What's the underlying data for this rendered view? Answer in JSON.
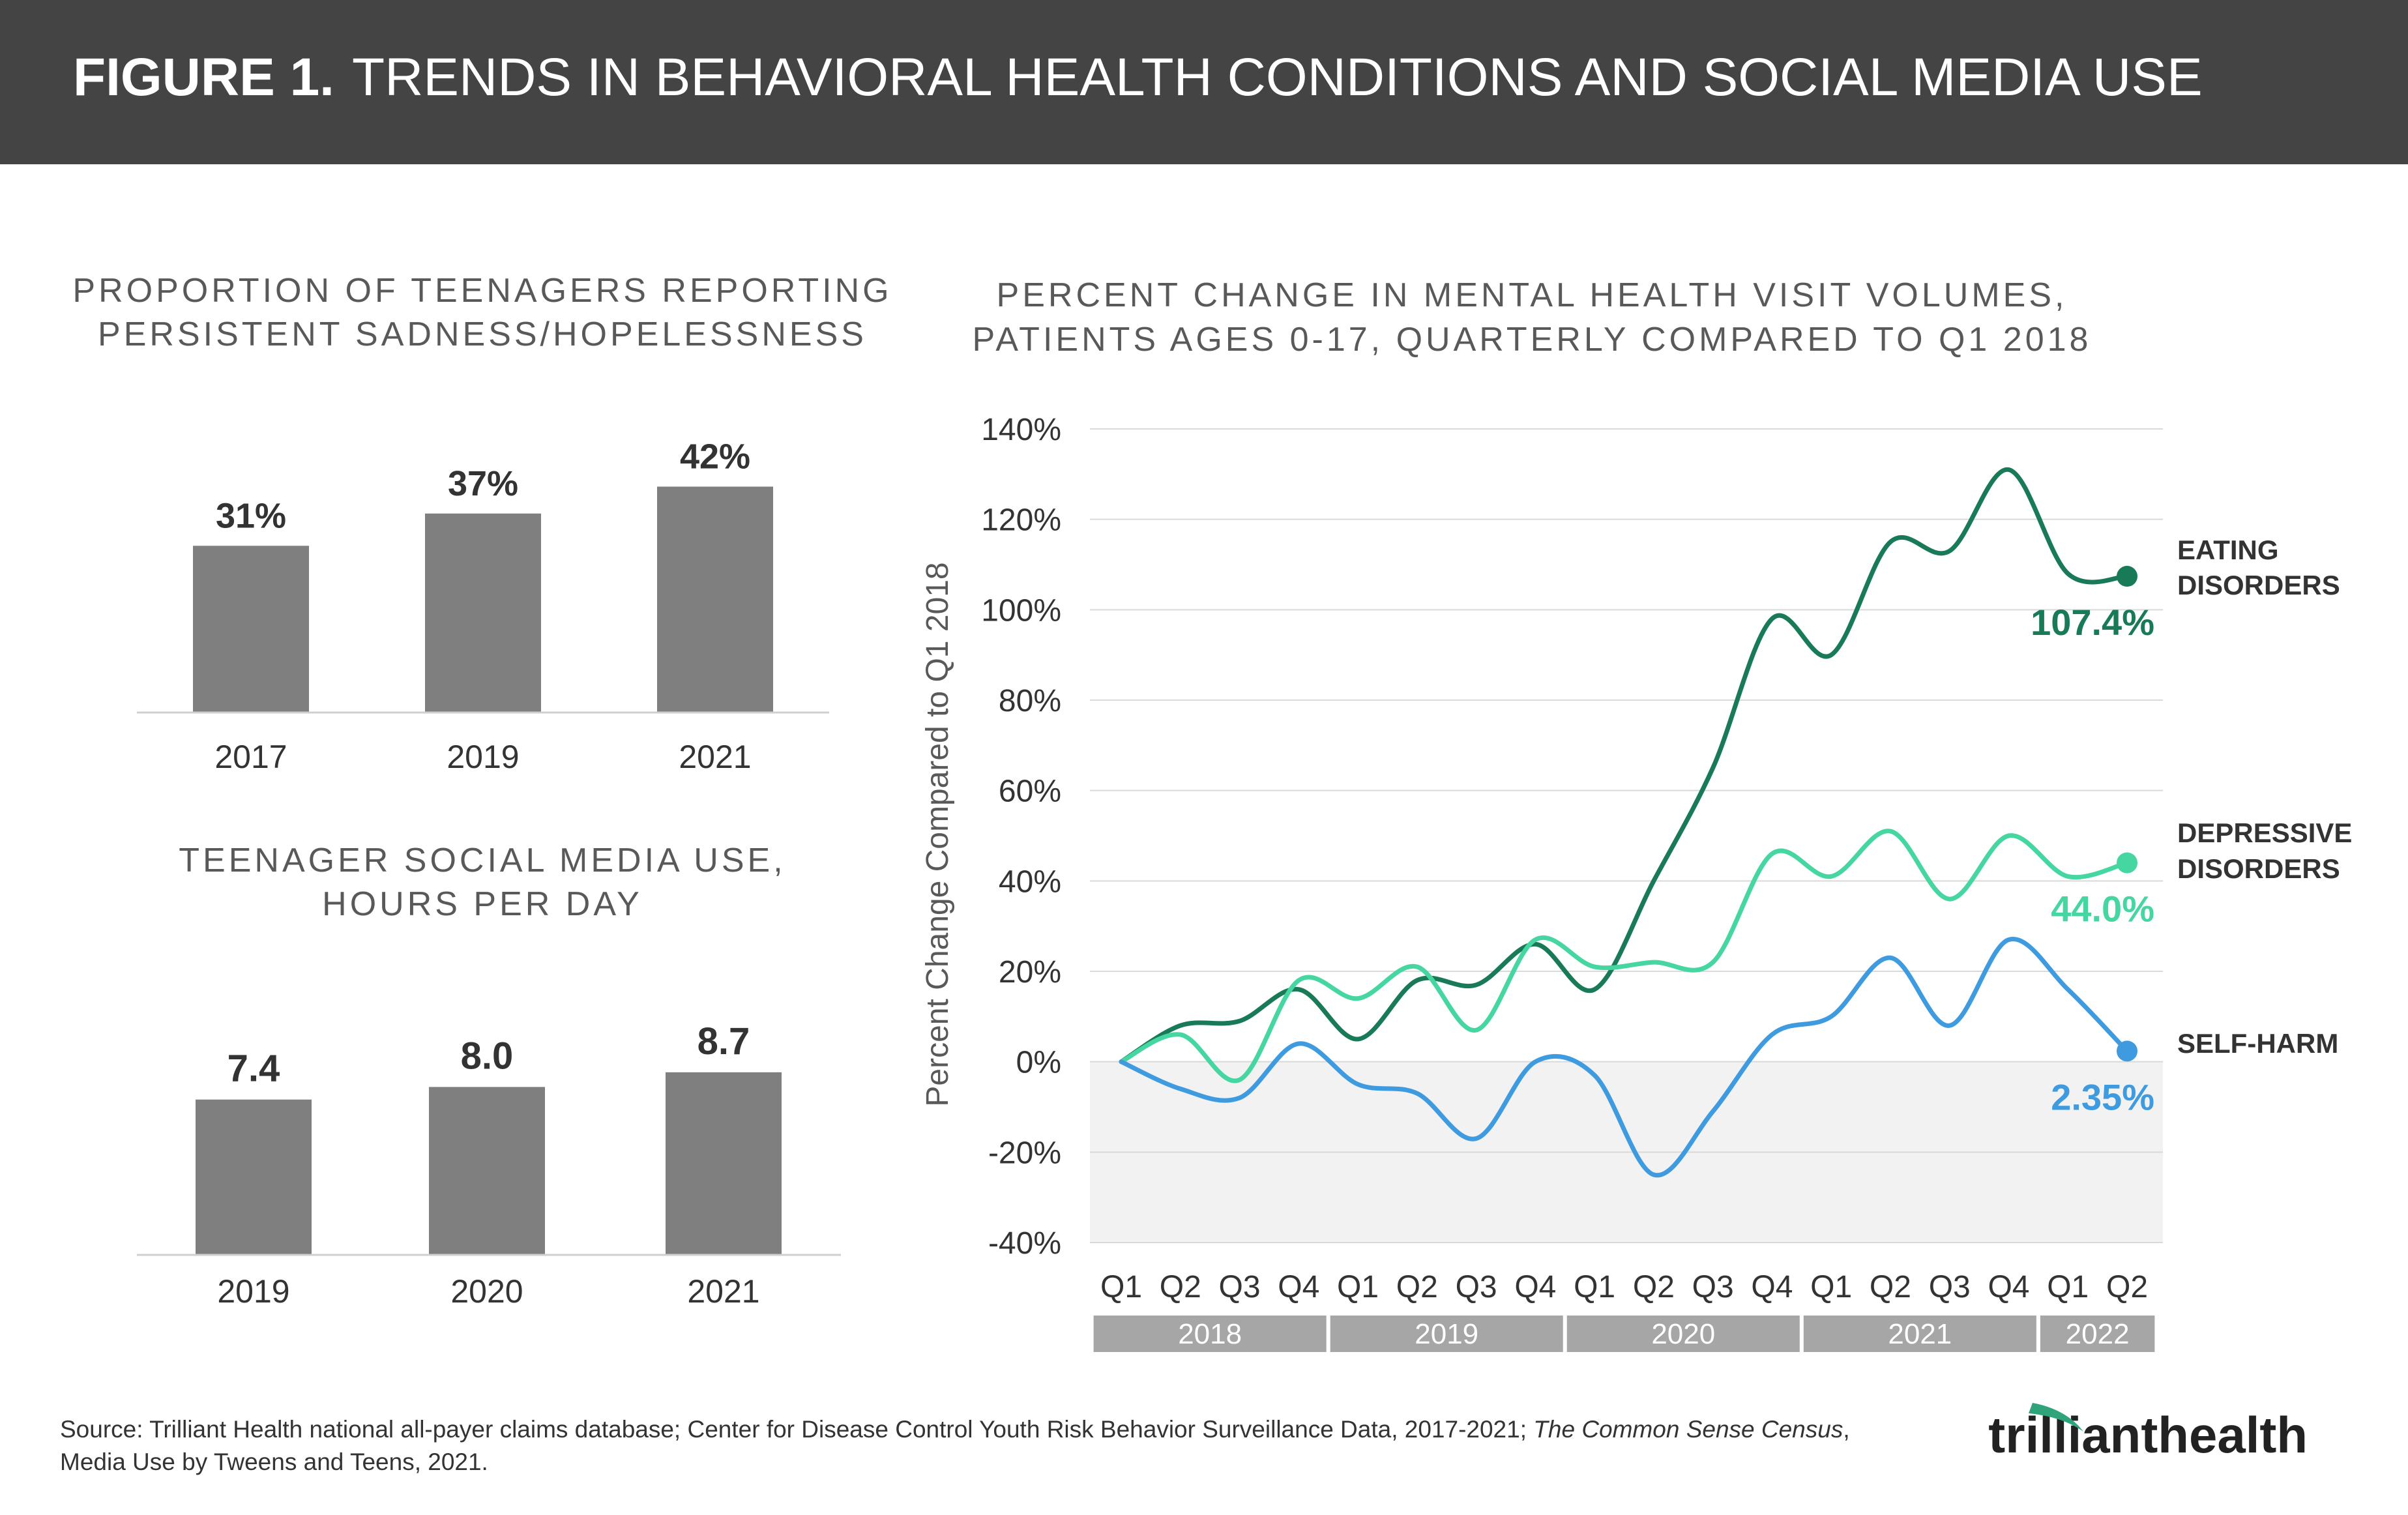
{
  "header": {
    "figure_label": "FIGURE 1.",
    "title": "TRENDS IN BEHAVIORAL HEALTH CONDITIONS AND SOCIAL MEDIA USE"
  },
  "colors": {
    "header_bg": "#444444",
    "bar": "#7f7f7f",
    "eating": "#187a57",
    "depressive": "#46d6a1",
    "self_harm": "#3f9be0",
    "year_bar": "#a6a6a6",
    "negative_band": "#f2f2f2"
  },
  "source": {
    "part1": "Source: Trilliant Health national all-payer claims database; Center for Disease Control Youth Risk Behavior Surveillance Data, 2017-2021; ",
    "italic": "The Common Sense Census",
    "part2": ",",
    "line2": "Media Use by Tweens and Teens, 2021."
  },
  "logo": {
    "left": "trilliant",
    "right": "health"
  },
  "chart_data": [
    {
      "type": "bar",
      "title_lines": [
        "PROPORTION OF TEENAGERS REPORTING",
        "PERSISTENT SADNESS/HOPELESSNESS"
      ],
      "categories": [
        "2017",
        "2019",
        "2021"
      ],
      "values": [
        31,
        37,
        42
      ],
      "value_labels": [
        "31%",
        "37%",
        "42%"
      ]
    },
    {
      "type": "bar",
      "title_lines": [
        "TEENAGER SOCIAL MEDIA USE,",
        "HOURS PER DAY"
      ],
      "categories": [
        "2019",
        "2020",
        "2021"
      ],
      "values": [
        7.4,
        8.0,
        8.7
      ],
      "value_labels": [
        "7.4",
        "8.0",
        "8.7"
      ]
    },
    {
      "type": "line",
      "title_lines": [
        "PERCENT CHANGE IN MENTAL HEALTH VISIT VOLUMES,",
        "PATIENTS AGES 0-17, QUARTERLY COMPARED TO Q1 2018"
      ],
      "ylabel": "Percent Change Compared to Q1 2018",
      "ylim": [
        -40,
        140
      ],
      "yticks": [
        "140%",
        "120%",
        "100%",
        "80%",
        "60%",
        "40%",
        "20%",
        "0%",
        "-20%",
        "-40%"
      ],
      "x": [
        "Q1",
        "Q2",
        "Q3",
        "Q4",
        "Q1",
        "Q2",
        "Q3",
        "Q4",
        "Q1",
        "Q2",
        "Q3",
        "Q4",
        "Q1",
        "Q2",
        "Q3",
        "Q4",
        "Q1",
        "Q2"
      ],
      "years": [
        {
          "label": "2018",
          "quarters": 4
        },
        {
          "label": "2019",
          "quarters": 4
        },
        {
          "label": "2020",
          "quarters": 4
        },
        {
          "label": "2021",
          "quarters": 4
        },
        {
          "label": "2022",
          "quarters": 2
        }
      ],
      "series": [
        {
          "name_lines": [
            "EATING",
            "DISORDERS"
          ],
          "end_label": "107.4%",
          "values": [
            0,
            8,
            9,
            16,
            5,
            18,
            17,
            26,
            16,
            40,
            65,
            98,
            90,
            115,
            113,
            131,
            108,
            107.4
          ]
        },
        {
          "name_lines": [
            "DEPRESSIVE",
            "DISORDERS"
          ],
          "end_label": "44.0%",
          "values": [
            0,
            6,
            -4,
            18,
            14,
            21,
            7,
            27,
            21,
            22,
            22,
            46,
            41,
            51,
            36,
            50,
            41,
            44.0
          ]
        },
        {
          "name_lines": [
            "SELF-HARM"
          ],
          "end_label": "2.35%",
          "values": [
            0,
            -6,
            -8,
            4,
            -5,
            -7,
            -17,
            0,
            -3,
            -25,
            -11,
            6,
            10,
            23,
            8,
            27,
            16,
            2.35
          ]
        }
      ]
    }
  ]
}
